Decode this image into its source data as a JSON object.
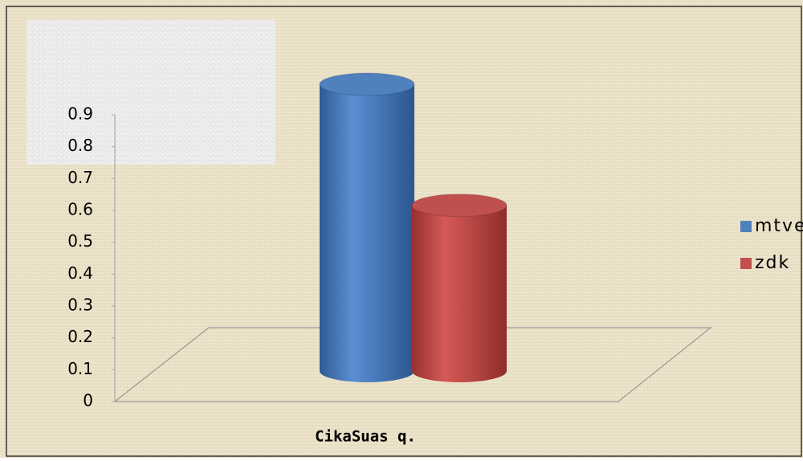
{
  "chart_data": {
    "type": "bar3d",
    "categories": [
      "CikaSuas q."
    ],
    "series": [
      {
        "name": "mtve",
        "color": "#4f81bd",
        "values": [
          0.9
        ]
      },
      {
        "name": "zdk",
        "color": "#c0504d",
        "values": [
          0.52
        ]
      }
    ],
    "ylim": [
      0,
      0.9
    ],
    "yticks": [
      0,
      0.1,
      0.2,
      0.3,
      0.4,
      0.5,
      0.6,
      0.7,
      0.8,
      0.9
    ],
    "legend": "right"
  }
}
